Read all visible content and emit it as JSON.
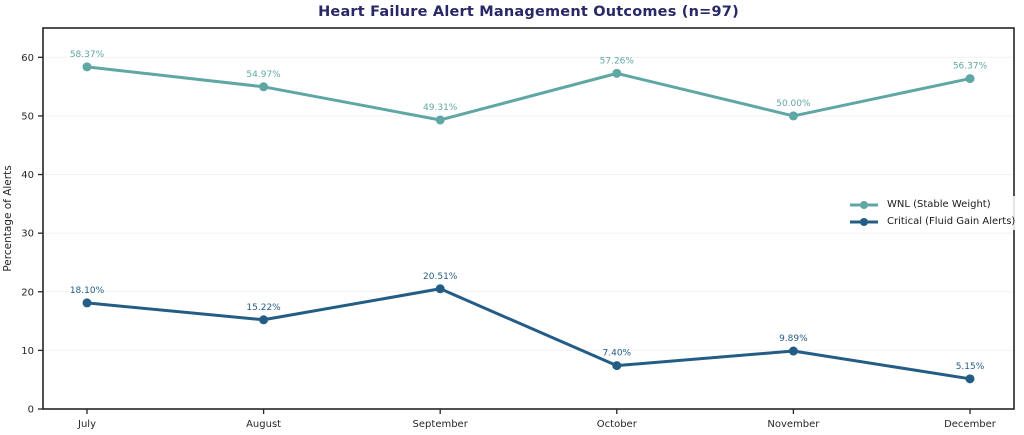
{
  "title": "Heart Failure Alert Management Outcomes (n=97)",
  "colors": {
    "title": "#282866",
    "axis": "#262626",
    "tick_label": "#262626",
    "grid": "#f2f2f2",
    "legend_text": "#1a1a1a",
    "background": "#ffffff",
    "wnl": "#5fa7a4",
    "critical": "#235d85"
  },
  "chart_data": {
    "type": "line",
    "title": "Heart Failure Alert Management Outcomes (n=97)",
    "xlabel": "",
    "ylabel": "Percentage of Alerts",
    "categories": [
      "July",
      "August",
      "September",
      "October",
      "November",
      "December"
    ],
    "series": [
      {
        "name": "WNL (Stable Weight)",
        "color": "#5fa7a4",
        "values": [
          58.37,
          54.97,
          49.31,
          57.26,
          50.0,
          56.37
        ],
        "labels": [
          "58.37%",
          "54.97%",
          "49.31%",
          "57.26%",
          "50.00%",
          "56.37%"
        ]
      },
      {
        "name": "Critical (Fluid Gain Alerts)",
        "color": "#235d85",
        "values": [
          18.1,
          15.22,
          20.51,
          7.4,
          9.89,
          5.15
        ],
        "labels": [
          "18.10%",
          "15.22%",
          "20.51%",
          "7.40%",
          "9.89%",
          "5.15%"
        ]
      }
    ],
    "ylim": [
      0,
      65
    ],
    "yticks": [
      0,
      10,
      20,
      30,
      40,
      50,
      60
    ],
    "grid": true,
    "legend_position": "center-right",
    "label_format": "percent_2dp"
  }
}
